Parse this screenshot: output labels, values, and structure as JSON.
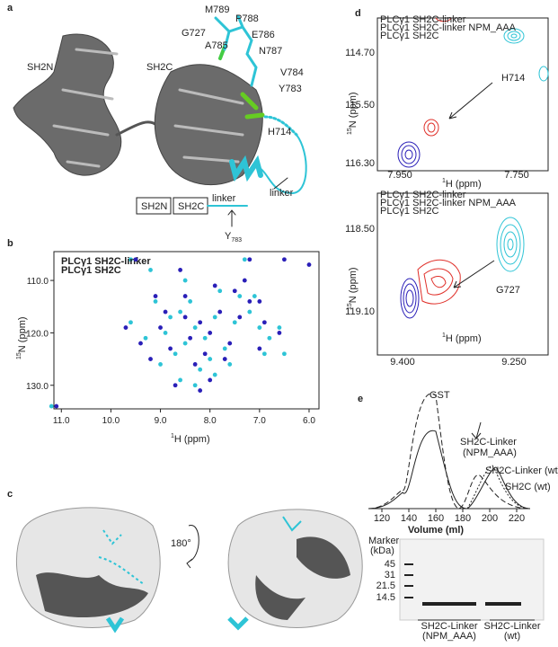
{
  "figure": {
    "labels": [
      "a",
      "b",
      "c",
      "d",
      "e"
    ]
  },
  "panel_a": {
    "domains": [
      "SH2N",
      "SH2C"
    ],
    "residues": [
      "M789",
      "P788",
      "E786",
      "G727",
      "A785",
      "N787",
      "V784",
      "Y783",
      "H714"
    ],
    "linker": "linker",
    "schematic": {
      "boxes": [
        "SH2N",
        "SH2C"
      ],
      "linker": "linker",
      "site": "Y",
      "site_sub": "783"
    }
  },
  "chart_data": {
    "type": "scatter",
    "x_label": {
      "sup": "1",
      "text": "H (ppm)"
    },
    "y_label": {
      "sup": "15",
      "text": "N (ppm)"
    },
    "xlim": [
      11.15,
      5.8
    ],
    "ylim": [
      134.5,
      104.5
    ],
    "xticks": [
      {
        "value": 11,
        "label": "11.0"
      },
      {
        "value": 10,
        "label": "10.0"
      },
      {
        "value": 9,
        "label": "9.0"
      },
      {
        "value": 8,
        "label": "8.0"
      },
      {
        "value": 7,
        "label": "7.0"
      },
      {
        "value": 6,
        "label": "6.0"
      }
    ],
    "yticks": [
      {
        "value": 110,
        "label": "110.0"
      },
      {
        "value": 120,
        "label": "120.0"
      },
      {
        "value": 130,
        "label": "130.0"
      }
    ],
    "series": [
      {
        "name": "PLCγ1 SH2C-linker",
        "color": "#2ec4d6",
        "x": [
          9.6,
          9.2,
          7.3,
          8.6,
          8.3,
          7.9,
          8.1,
          8.5,
          8.7,
          8.9,
          7.7,
          7.5,
          7.2,
          7.0,
          6.8,
          6.6,
          6.5,
          9.0,
          8.2,
          8.0,
          7.6,
          8.4,
          8.8,
          9.3,
          9.6,
          9.1,
          7.8,
          7.4,
          11.2,
          8.6,
          8.3,
          7.1,
          6.9,
          7.9,
          8.5
        ],
        "values": [
          106,
          108,
          106,
          116,
          119,
          117,
          121,
          122,
          124,
          120,
          123,
          118,
          116,
          119,
          121,
          119,
          124,
          126,
          127,
          125,
          126,
          114,
          117,
          121,
          118,
          114,
          112,
          113,
          134,
          129,
          130,
          113,
          124,
          128,
          110
        ]
      },
      {
        "name": "PLCγ1 SH2C",
        "color": "#2a1fb8",
        "x": [
          9.5,
          11.1,
          7.2,
          6.5,
          6.0,
          8.5,
          8.2,
          7.8,
          8.0,
          8.4,
          8.8,
          9.0,
          7.6,
          7.4,
          7.0,
          6.9,
          6.6,
          9.2,
          8.3,
          8.1,
          7.7,
          8.5,
          8.9,
          9.4,
          9.7,
          9.1,
          7.9,
          7.5,
          8.7,
          8.2,
          7.2,
          7.0,
          8.0,
          8.6,
          7.3
        ],
        "values": [
          106,
          134,
          106,
          106,
          107,
          117,
          118,
          116,
          120,
          121,
          123,
          119,
          122,
          117,
          114,
          118,
          120,
          125,
          126,
          124,
          125,
          113,
          116,
          122,
          119,
          113,
          111,
          112,
          130,
          131,
          114,
          123,
          129,
          108,
          110
        ]
      }
    ]
  },
  "panel_c": {
    "rotation": "180°"
  },
  "panel_d": {
    "legend": [
      "PLCγ1 SH2C-linker",
      "PLCγ1 SH2C-linker NPM_AAA",
      "PLCγ1 SH2C"
    ],
    "x_label": {
      "sup": "1",
      "text": "H (ppm)"
    },
    "y_label": {
      "sup": "15",
      "text": "N (ppm)"
    },
    "top": {
      "yticks": [
        "114.70",
        "115.50",
        "116.30"
      ],
      "xticks": [
        "7.950",
        "7.750"
      ],
      "peak": "H714"
    },
    "bottom": {
      "yticks": [
        "118.50",
        "119.10"
      ],
      "xticks": [
        "9.400",
        "9.250"
      ],
      "peak": "G727"
    }
  },
  "panel_e": {
    "xlim": [
      110,
      230
    ],
    "xticks": [
      120,
      140,
      160,
      180,
      200,
      220
    ],
    "x_label": "Volume (ml)",
    "peaks": [
      "GST",
      "SH2C-Linker",
      "(NPM_AAA)",
      "SH2C-Linker (wt)",
      "SH2C (wt)"
    ],
    "gel": {
      "marker": "Marker",
      "unit": "(kDa)",
      "sizes": [
        "45",
        "31",
        "21.5",
        "14.5"
      ],
      "lanes": [
        [
          "SH2C-Linker",
          "(NPM_AAA)"
        ],
        [
          "SH2C-Linker",
          "(wt)"
        ]
      ]
    }
  }
}
